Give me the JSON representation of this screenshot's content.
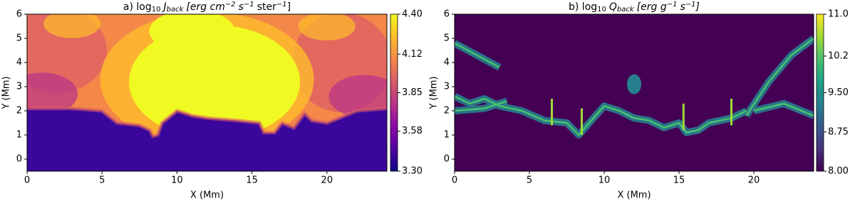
{
  "chart_data": [
    {
      "type": "heatmap",
      "title": [
        "a) log",
        "10",
        "J",
        "back",
        "[erg cm",
        "−2",
        "s",
        "−1",
        "ster",
        "−1",
        "]"
      ],
      "xlabel": "X (Mm)",
      "ylabel": "Y (Mm)",
      "xlim": [
        0,
        24
      ],
      "xticks": [
        0,
        5,
        10,
        15,
        20
      ],
      "ylim": [
        -0.5,
        6
      ],
      "yticks": [
        0,
        1,
        2,
        3,
        4,
        5,
        6
      ],
      "colormap": "plasma",
      "clim": [
        3.3,
        4.4
      ],
      "cticks": [
        {
          "value": 3.3,
          "label": "3.30"
        },
        3.58,
        3.85,
        4.12,
        {
          "value": 4.4,
          "label": "4.40"
        }
      ]
    },
    {
      "type": "heatmap",
      "title": [
        "b) log",
        "10",
        "Q",
        "back",
        "[erg g",
        "−1",
        "s",
        "−1",
        "]"
      ],
      "xlabel": "X (Mm)",
      "ylabel": "Y (Mm)",
      "xlim": [
        0,
        24
      ],
      "xticks": [
        0,
        5,
        10,
        15,
        20
      ],
      "ylim": [
        -0.5,
        6
      ],
      "yticks": [
        0,
        1,
        2,
        3,
        4,
        5,
        6
      ],
      "colormap": "viridis",
      "clim": [
        8,
        11
      ],
      "cticks": [
        {
          "value": 8,
          "label": "8.00"
        },
        8.75,
        {
          "value": 9.5,
          "label": "9.50"
        },
        10.2,
        {
          "value": 11,
          "label": "11.0"
        }
      ]
    }
  ]
}
